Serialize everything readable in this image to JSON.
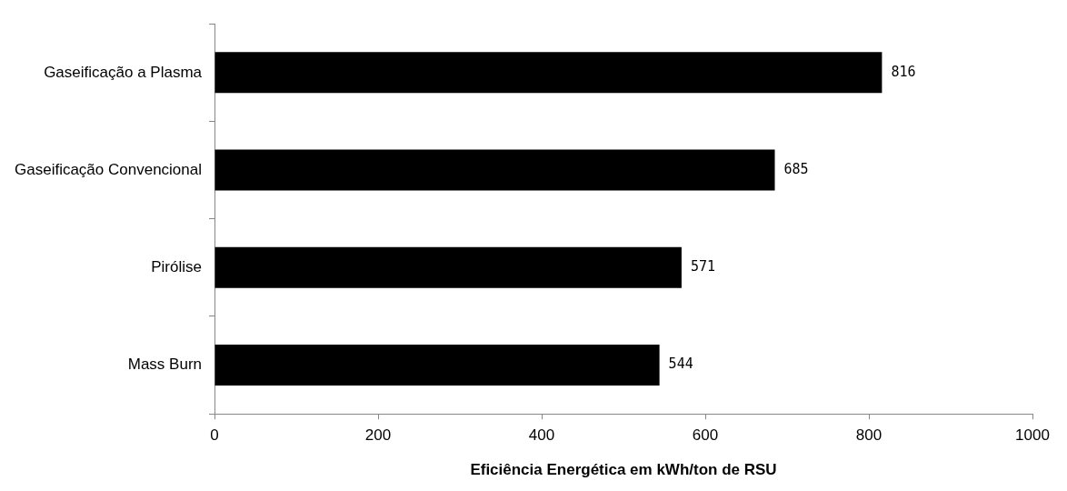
{
  "chart_data": {
    "type": "bar",
    "orientation": "horizontal",
    "xlabel": "Eficiência Energética em kWh/ton de RSU",
    "categories": [
      "Gaseificação a Plasma",
      "Gaseificação Convencional",
      "Pirólise",
      "Mass Burn"
    ],
    "values": [
      816,
      685,
      571,
      544
    ],
    "color": "#000000",
    "xlim": [
      0,
      1000
    ],
    "xticks": [
      0,
      200,
      400,
      600,
      800,
      1000
    ],
    "grid": false,
    "legend": false,
    "data_labels": true
  }
}
